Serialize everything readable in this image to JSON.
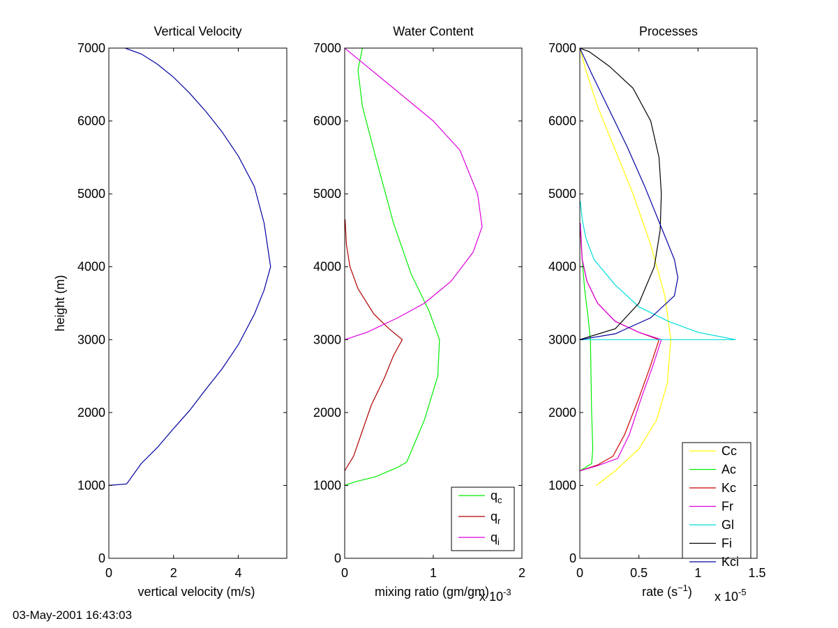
{
  "footer": {
    "timestamp": "03-May-2001 16:43:03"
  },
  "chart_data": [
    {
      "type": "line",
      "title": "Vertical Velocity",
      "xlabel": "vertical velocity (m/s)",
      "ylabel": "height (m)",
      "xlim": [
        0,
        5.5
      ],
      "ylim": [
        0,
        7000
      ],
      "x_ticks": [
        0,
        2,
        4
      ],
      "y_ticks": [
        0,
        1000,
        2000,
        3000,
        4000,
        5000,
        6000,
        7000
      ],
      "x_exponent": "",
      "legend": null,
      "series": [
        {
          "color": "#0000a0",
          "x": [
            0,
            0.55,
            1.0,
            1.5,
            2.0,
            2.5,
            3.0,
            3.5,
            4.0,
            4.5,
            4.8,
            5.0,
            4.8,
            4.5,
            4.0,
            3.5,
            3.0,
            2.5,
            2.0,
            1.5,
            1.0,
            0.5
          ],
          "y": [
            1000,
            1020,
            1300,
            1520,
            1780,
            2030,
            2320,
            2600,
            2930,
            3350,
            3680,
            4000,
            4600,
            5100,
            5520,
            5850,
            6130,
            6380,
            6600,
            6780,
            6920,
            7000
          ]
        }
      ]
    },
    {
      "type": "line",
      "title": "Water Content",
      "xlabel": "mixing ratio (gm/gm)",
      "ylabel": "",
      "xlim": [
        0,
        2
      ],
      "ylim": [
        0,
        7000
      ],
      "x_ticks": [
        0,
        1,
        2
      ],
      "y_ticks": [
        0,
        1000,
        2000,
        3000,
        4000,
        5000,
        6000,
        7000
      ],
      "x_exponent": "x 10",
      "x_exponent_power": "-3",
      "legend": "bottom-right",
      "series": [
        {
          "name": "q",
          "subscript": "c",
          "color": "#00ee00",
          "x": [
            0,
            0.12,
            0.35,
            0.6,
            0.7,
            0.9,
            1.05,
            1.07,
            0.95,
            0.75,
            0.55,
            0.35,
            0.2,
            0.15,
            0.2
          ],
          "y": [
            1000,
            1050,
            1120,
            1250,
            1320,
            1900,
            2500,
            3000,
            3400,
            3900,
            4600,
            5500,
            6200,
            6700,
            7000
          ]
        },
        {
          "name": "q",
          "subscript": "r",
          "color": "#b00000",
          "x": [
            0,
            0.1,
            0.2,
            0.3,
            0.45,
            0.55,
            0.65,
            0.5,
            0.33,
            0.15,
            0.06,
            0.02,
            0.005
          ],
          "y": [
            1200,
            1400,
            1750,
            2100,
            2480,
            2780,
            3000,
            3150,
            3350,
            3700,
            4000,
            4300,
            4650
          ]
        },
        {
          "name": "q",
          "subscript": "i",
          "color": "#dd00dd",
          "x": [
            0,
            0.25,
            0.6,
            0.9,
            1.2,
            1.45,
            1.55,
            1.5,
            1.3,
            1.0,
            0.55,
            0.15,
            0
          ],
          "y": [
            3000,
            3100,
            3300,
            3500,
            3800,
            4200,
            4550,
            5000,
            5600,
            6000,
            6450,
            6850,
            7000
          ]
        }
      ]
    },
    {
      "type": "line",
      "title": "Processes",
      "xlabel": "rate (s⁻¹)",
      "ylabel": "",
      "xlim": [
        0,
        1.5
      ],
      "ylim": [
        0,
        7000
      ],
      "x_ticks": [
        0,
        0.5,
        1,
        1.5
      ],
      "y_ticks": [
        0,
        1000,
        2000,
        3000,
        4000,
        5000,
        6000,
        7000
      ],
      "x_exponent": "x 10",
      "x_exponent_power": "-5",
      "legend": "bottom-right",
      "series": [
        {
          "name": "Cc",
          "color": "#ffff00",
          "x": [
            0.14,
            0.3,
            0.5,
            0.65,
            0.74,
            0.77,
            0.72,
            0.6,
            0.45,
            0.3,
            0.15,
            0.05,
            0
          ],
          "y": [
            1000,
            1200,
            1500,
            1900,
            2400,
            3000,
            3600,
            4300,
            5000,
            5600,
            6200,
            6700,
            7000
          ]
        },
        {
          "name": "Ac",
          "color": "#00ee00",
          "x": [
            0,
            0.1,
            0.11,
            0.1,
            0.09,
            0.07,
            0.04,
            0.02,
            0.005
          ],
          "y": [
            1200,
            1300,
            1500,
            2000,
            3000,
            3300,
            3700,
            4100,
            4500
          ]
        },
        {
          "name": "Kc",
          "color": "#cc0000",
          "x": [
            0,
            0.15,
            0.28,
            0.38,
            0.5,
            0.6,
            0.67,
            0.5,
            0.3,
            0.15,
            0.06,
            0.02,
            0.005
          ],
          "y": [
            1200,
            1280,
            1400,
            1700,
            2200,
            2650,
            3000,
            3100,
            3250,
            3500,
            3800,
            4100,
            4500
          ]
        },
        {
          "name": "Fr",
          "color": "#dd00dd",
          "x": [
            0,
            0.15,
            0.32,
            0.42,
            0.52,
            0.62,
            0.69,
            0.5,
            0.3,
            0.15,
            0.06,
            0.02,
            0.005
          ],
          "y": [
            1200,
            1270,
            1370,
            1700,
            2200,
            2650,
            3000,
            3100,
            3250,
            3500,
            3800,
            4100,
            4600
          ]
        },
        {
          "name": "Gl",
          "color": "#00dddd",
          "x": [
            0,
            0.5,
            1.0,
            1.32,
            1.0,
            0.75,
            0.5,
            0.3,
            0.12,
            0.05,
            0.02,
            0.005
          ],
          "y": [
            3000,
            3000,
            3000,
            3000,
            3100,
            3250,
            3450,
            3750,
            4100,
            4400,
            4650,
            4900
          ]
        },
        {
          "name": "Fi",
          "color": "#000000",
          "x": [
            0,
            0.3,
            0.5,
            0.63,
            0.68,
            0.69,
            0.67,
            0.6,
            0.45,
            0.25,
            0.08,
            0
          ],
          "y": [
            3000,
            3150,
            3500,
            4000,
            4500,
            5000,
            5500,
            6000,
            6450,
            6750,
            6950,
            7000
          ]
        },
        {
          "name": "Kci",
          "color": "#0000a0",
          "x": [
            0,
            0.3,
            0.6,
            0.8,
            0.83,
            0.8,
            0.7,
            0.55,
            0.4,
            0.25,
            0.1,
            0
          ],
          "y": [
            3000,
            3080,
            3300,
            3600,
            3850,
            4100,
            4500,
            5100,
            5650,
            6150,
            6650,
            7000
          ]
        }
      ]
    }
  ]
}
